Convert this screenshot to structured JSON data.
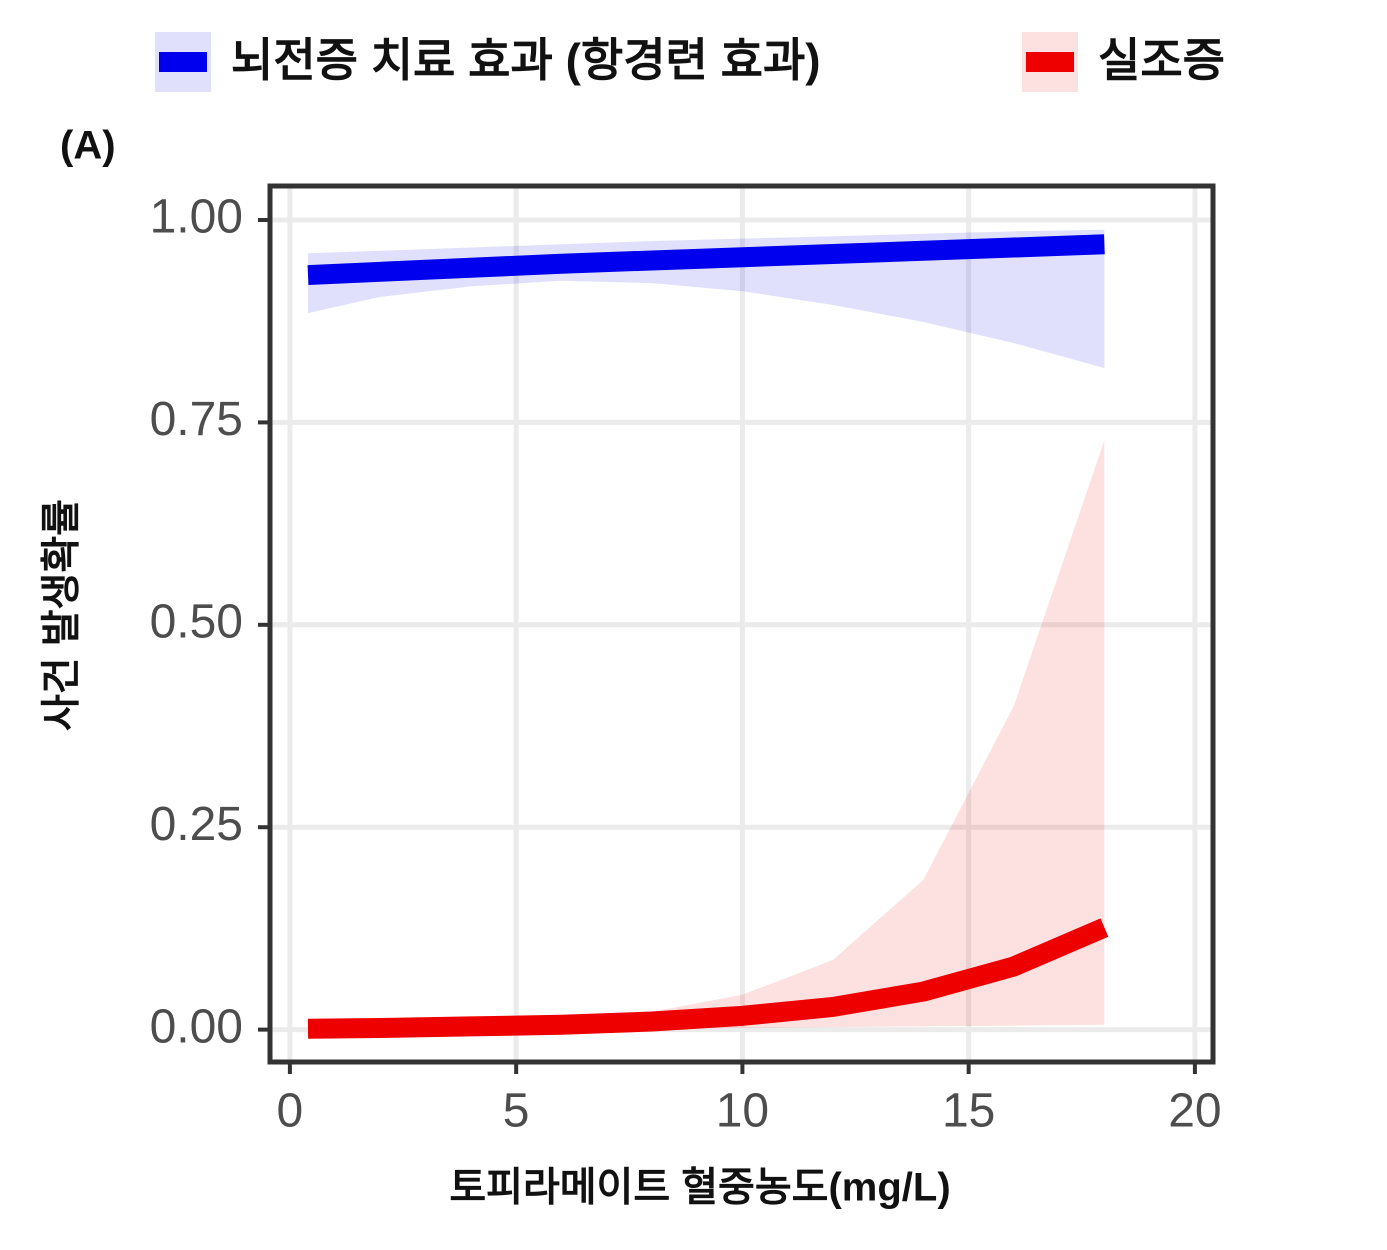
{
  "chart_data": {
    "type": "line",
    "panel_label": "(A)",
    "x_label": "토피라메이트 혈중농도(mg/L)",
    "y_label": "사건 발생확률",
    "x": [
      0.4,
      2,
      4,
      6,
      8,
      10,
      12,
      14,
      16,
      18
    ],
    "series": [
      {
        "name": "뇌전증 치료 효과 (항경련 효과)",
        "color": "#0000ee",
        "values": [
          0.932,
          0.936,
          0.941,
          0.946,
          0.95,
          0.954,
          0.958,
          0.962,
          0.966,
          0.97
        ],
        "lower": [
          0.885,
          0.905,
          0.918,
          0.925,
          0.922,
          0.912,
          0.895,
          0.874,
          0.848,
          0.817
        ],
        "upper": [
          0.959,
          0.962,
          0.966,
          0.97,
          0.974,
          0.977,
          0.98,
          0.983,
          0.986,
          0.988
        ]
      },
      {
        "name": "실조증",
        "color": "#ee0000",
        "values": [
          0.001,
          0.002,
          0.004,
          0.006,
          0.01,
          0.017,
          0.028,
          0.047,
          0.078,
          0.126
        ],
        "lower": [
          0,
          0,
          0,
          0,
          0.001,
          0.002,
          0.003,
          0.004,
          0.005,
          0.006
        ],
        "upper": [
          0.002,
          0.004,
          0.007,
          0.012,
          0.022,
          0.043,
          0.086,
          0.185,
          0.4,
          0.728
        ]
      }
    ],
    "xlim": [
      -0.44,
      20.4
    ],
    "ylim": [
      -0.04,
      1.042
    ],
    "xticks": [
      0,
      5,
      10,
      15,
      20
    ],
    "yticks": [
      {
        "value": 0,
        "label": "0.00"
      },
      {
        "value": 0.25,
        "label": "0.25"
      },
      {
        "value": 0.5,
        "label": "0.50"
      },
      {
        "value": 0.75,
        "label": "0.75"
      },
      {
        "value": 1,
        "label": "1.00"
      }
    ],
    "grid": true,
    "legend": "top"
  }
}
